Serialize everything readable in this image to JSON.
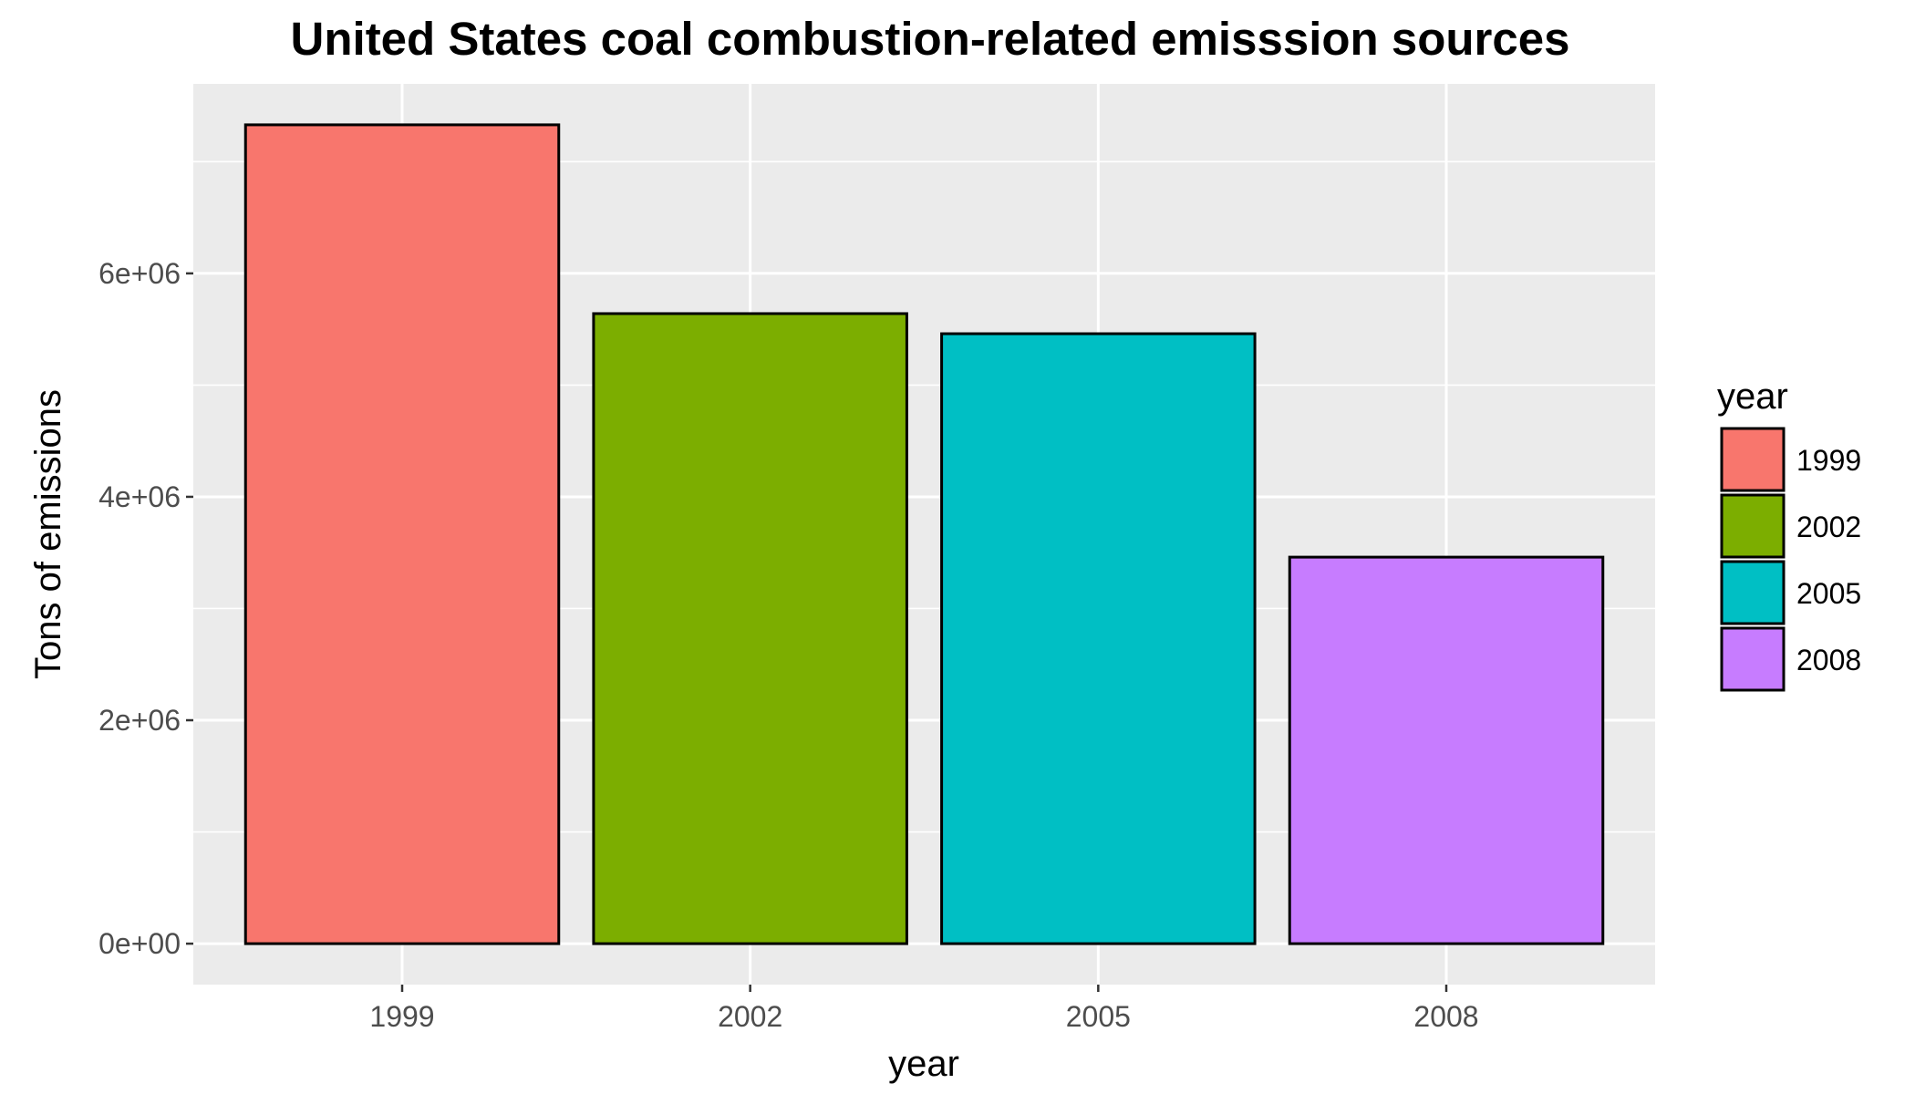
{
  "chart_data": {
    "type": "bar",
    "title": "United States coal combustion-related emisssion sources",
    "xlabel": "year",
    "ylabel": "Tons of emissions",
    "categories": [
      "1999",
      "2002",
      "2005",
      "2008"
    ],
    "values": [
      7330000,
      5640000,
      5460000,
      3460000
    ],
    "colors": [
      "#F8766D",
      "#7CAE00",
      "#00BFC4",
      "#C77CFF"
    ],
    "bar_outline": "#000000",
    "yticks": [
      0,
      2000000,
      4000000,
      6000000
    ],
    "ytick_labels": [
      "0e+00",
      "2e+06",
      "4e+06",
      "6e+06"
    ],
    "ylim": [
      -366500,
      7696500
    ],
    "grid": true,
    "panel_background": "#EBEBEB",
    "grid_color": "#FFFFFF",
    "legend": {
      "title": "year",
      "position": "right",
      "entries": [
        "1999",
        "2002",
        "2005",
        "2008"
      ]
    }
  }
}
